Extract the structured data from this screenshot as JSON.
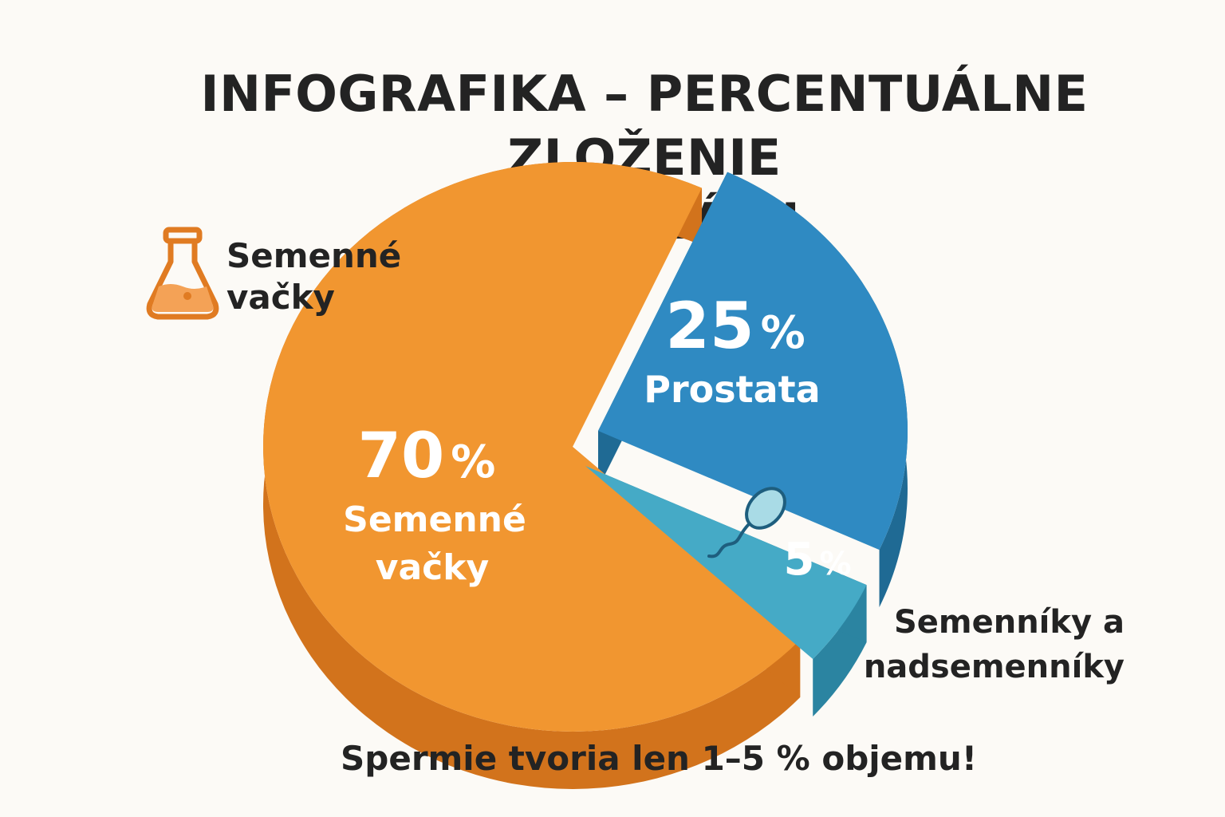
{
  "title_lines": [
    "INFOGRAFIKA – PERCENTUÁLNE ZLOŽENIE",
    "EJAKULÁTU"
  ],
  "legend": {
    "icon": "flask-icon",
    "label_lines": [
      "Semenné",
      "vačky"
    ]
  },
  "side_label_lines": [
    "Semenníky a",
    "nadsemenníky"
  ],
  "footnote": "Spermie tvoria len 1–5 % objemu!",
  "slice_texts": {
    "orange": {
      "value": "70",
      "unit": "%",
      "label_lines": [
        "Semenné",
        "vačky"
      ]
    },
    "blue": {
      "value": "25",
      "unit": "%",
      "label_lines": [
        "Prostata"
      ]
    },
    "teal": {
      "value": "5",
      "unit": "%"
    }
  },
  "sperm_icon": "sperm-icon",
  "colors": {
    "orange": "#f19630",
    "orange_side": "#d2731c",
    "blue": "#2f8ac2",
    "blue_side": "#1f6a94",
    "teal": "#45aac6",
    "teal_side": "#2b84a1"
  },
  "chart_data": {
    "type": "pie",
    "title": "INFOGRAFIKA – PERCENTUÁLNE ZLOŽENIE EJAKULÁTU",
    "slices": [
      {
        "label": "Semenné vačky",
        "value": 70,
        "color": "#f19630"
      },
      {
        "label": "Prostata",
        "value": 25,
        "color": "#2f8ac2"
      },
      {
        "label": "Semenníky a nadsemenníky",
        "value": 5,
        "color": "#45aac6"
      }
    ]
  }
}
